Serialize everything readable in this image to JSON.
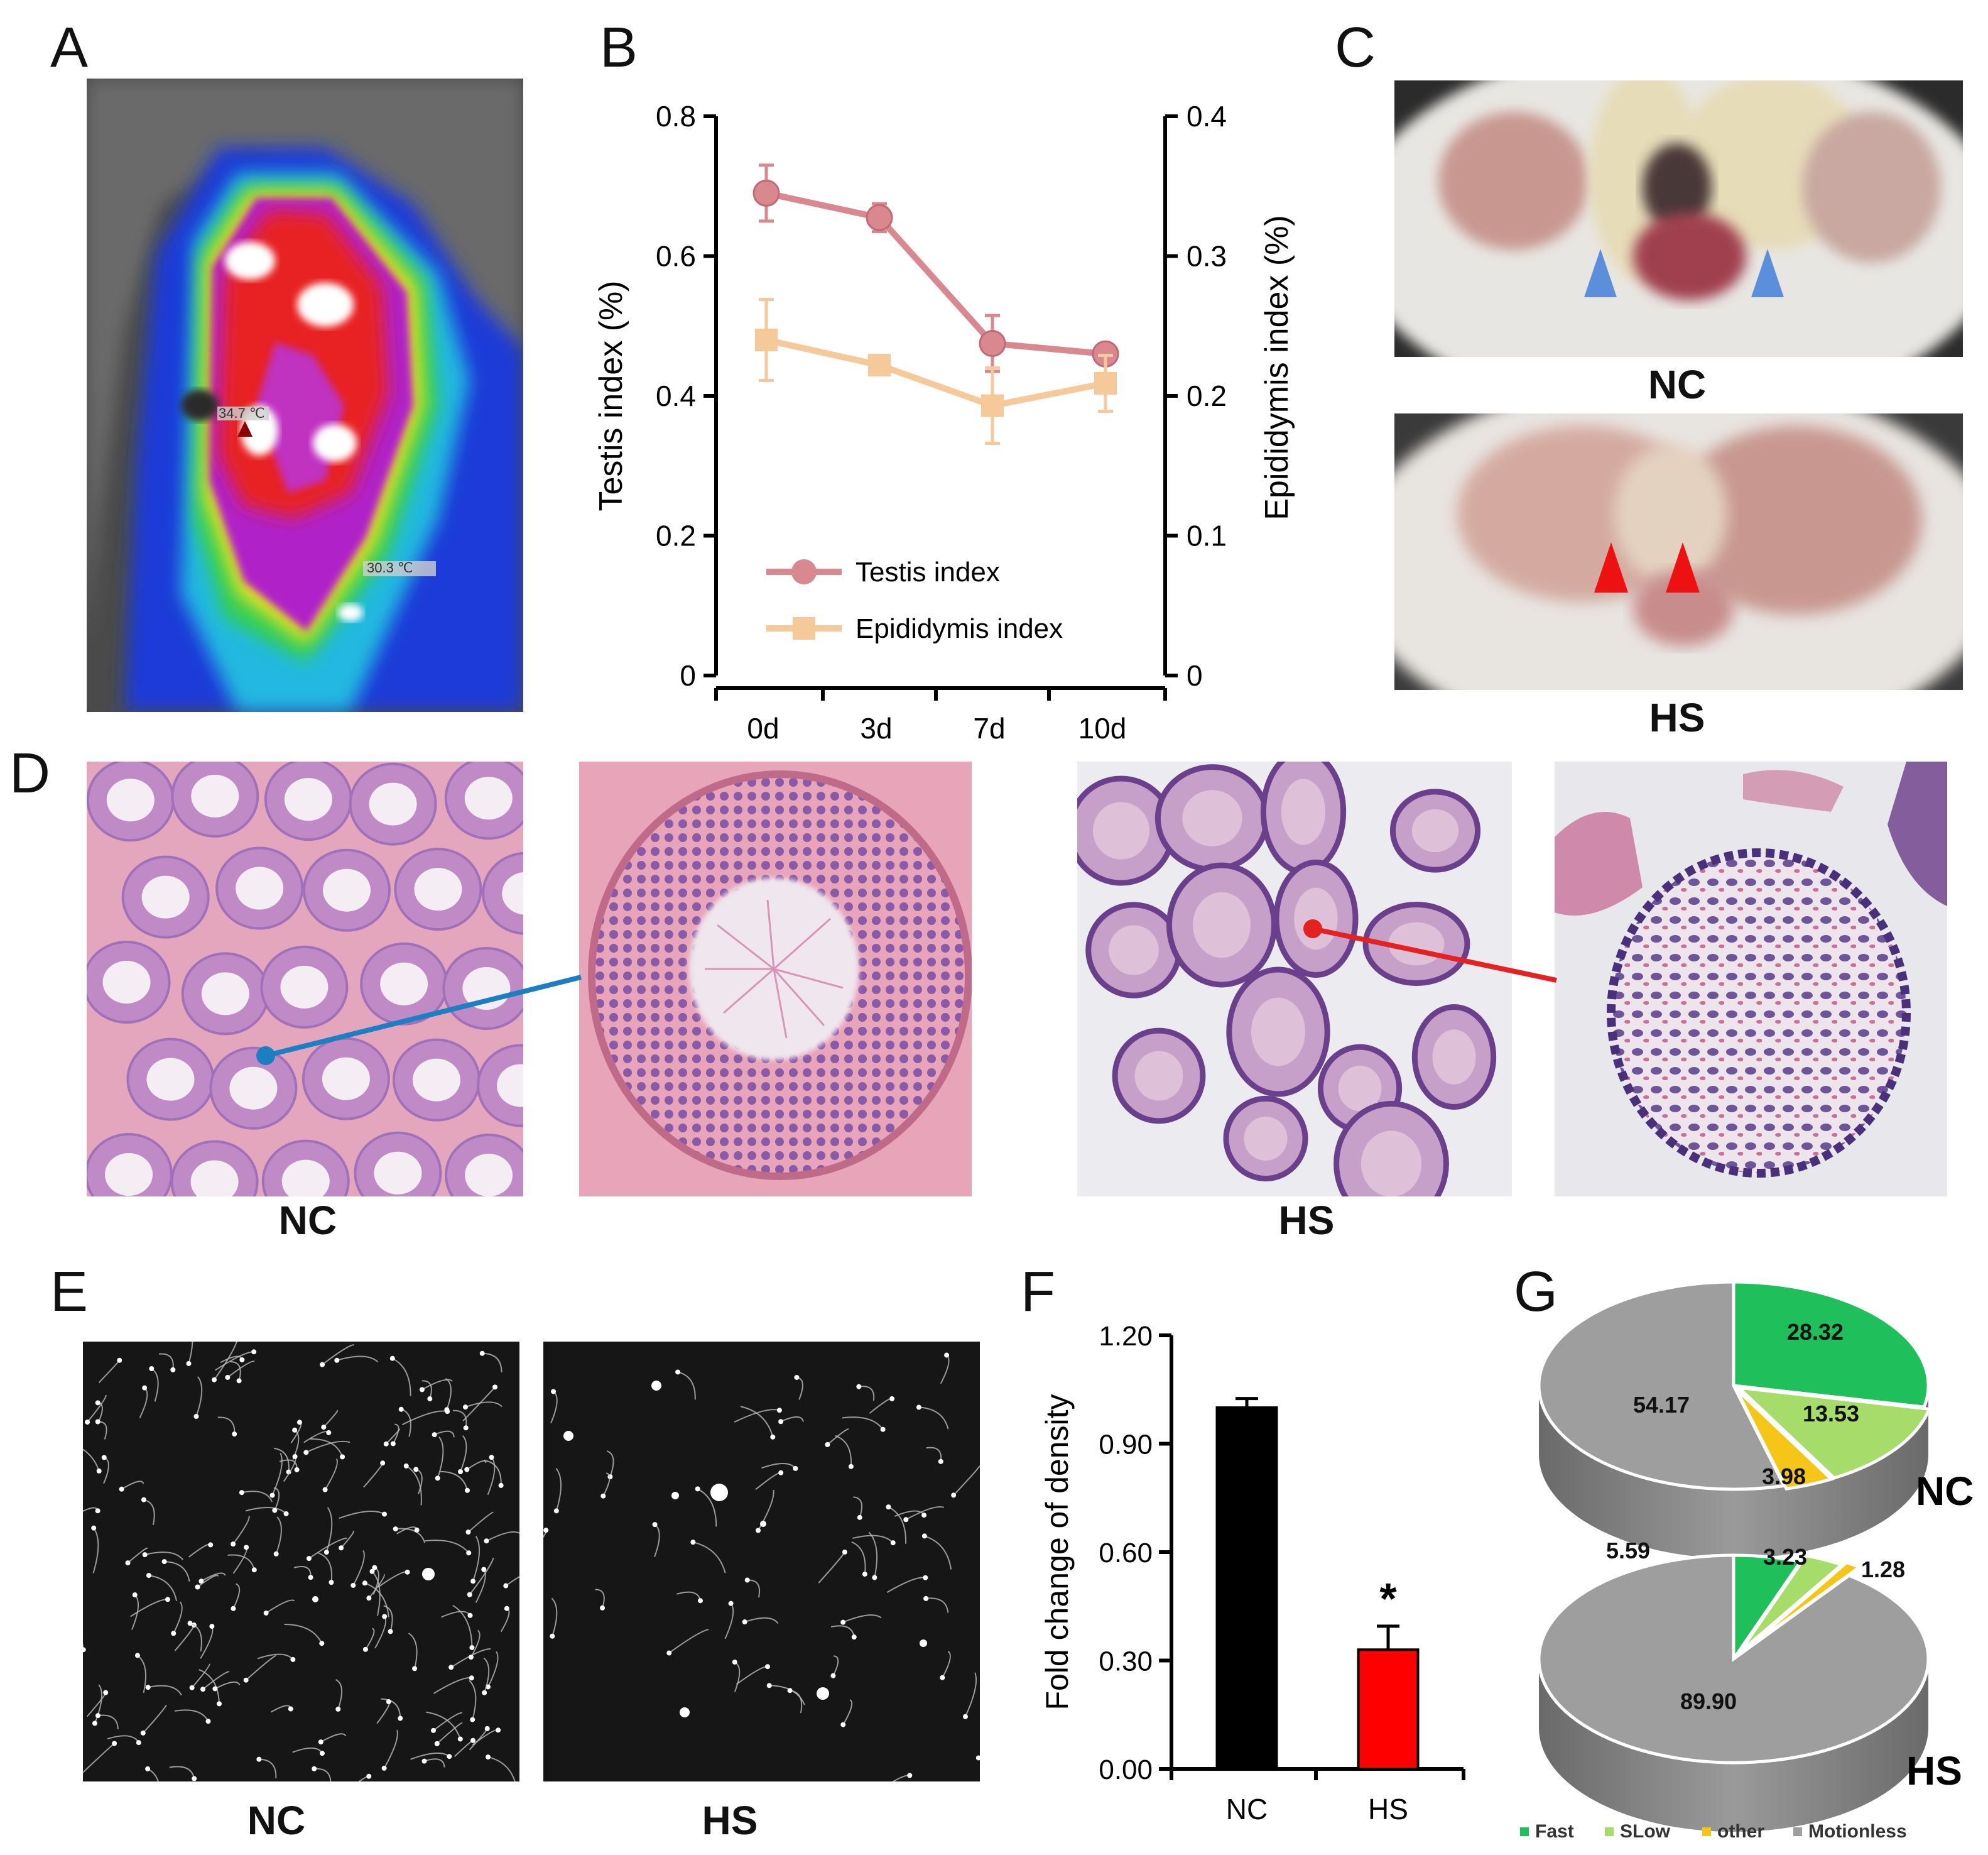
{
  "panels": {
    "A": {
      "letter": "A",
      "temp_high": "34.7 ℃",
      "temp_low": "30.3 ℃"
    },
    "B": {
      "letter": "B"
    },
    "C": {
      "letter": "C",
      "label_top": "NC",
      "label_bottom": "HS"
    },
    "D": {
      "letter": "D",
      "label_left": "NC",
      "label_right": "HS"
    },
    "E": {
      "letter": "E",
      "label_left": "NC",
      "label_right": "HS"
    },
    "F": {
      "letter": "F"
    },
    "G": {
      "letter": "G"
    }
  },
  "colors": {
    "testis": "#d9888f",
    "epididymis": "#f5c99a",
    "nc_bar": "#000000",
    "hs_bar": "#ff0000",
    "fast": "#1fbf5c",
    "slow": "#a6dd6a",
    "other": "#f5c518",
    "motionless": "#9e9e9e",
    "blue_marker": "#1b7fc2",
    "red_marker": "#e52222"
  },
  "chart_data": [
    {
      "id": "B",
      "type": "line",
      "categories": [
        "0d",
        "3d",
        "7d",
        "10d"
      ],
      "ylabel": "Testis index (%)",
      "ylim": [
        0,
        0.8
      ],
      "yticks": [
        "0",
        "0.2",
        "0.4",
        "0.6",
        "0.8"
      ],
      "y2label": "Epididymis index (%)",
      "y2lim": [
        0,
        0.4
      ],
      "y2ticks": [
        "0",
        "0.1",
        "0.2",
        "0.3",
        "0.4"
      ],
      "legend_position": "bottom-left",
      "series": [
        {
          "name": "Testis index",
          "axis": "left",
          "marker": "circle",
          "values": [
            0.69,
            0.655,
            0.475,
            0.46
          ],
          "errors": [
            0.04,
            0.02,
            0.04,
            0.01
          ]
        },
        {
          "name": "Epididymis index",
          "axis": "right",
          "marker": "square",
          "values": [
            0.24,
            0.222,
            0.193,
            0.209
          ],
          "errors": [
            0.029,
            0.004,
            0.027,
            0.02
          ]
        }
      ]
    },
    {
      "id": "F",
      "type": "bar",
      "categories": [
        "NC",
        "HS"
      ],
      "values": [
        1.0,
        0.33
      ],
      "errors": [
        0.025,
        0.065
      ],
      "significance": [
        "",
        "*"
      ],
      "ylabel": "Fold change of density",
      "ylim": [
        0,
        1.2
      ],
      "yticks": [
        "0.00",
        "0.30",
        "0.60",
        "0.90",
        "1.20"
      ]
    },
    {
      "id": "G",
      "type": "pie",
      "legend": [
        "Fast",
        "SLow",
        "other",
        "Motionless"
      ],
      "legend_position": "bottom",
      "pies": [
        {
          "name": "NC",
          "values": [
            28.32,
            13.53,
            3.98,
            54.17
          ],
          "labels": [
            "28.32",
            "13.53",
            "3.98",
            "54.17"
          ]
        },
        {
          "name": "HS",
          "values": [
            5.59,
            3.23,
            1.28,
            89.9
          ],
          "labels": [
            "5.59",
            "3.23",
            "1.28",
            "89.90"
          ]
        }
      ]
    }
  ]
}
